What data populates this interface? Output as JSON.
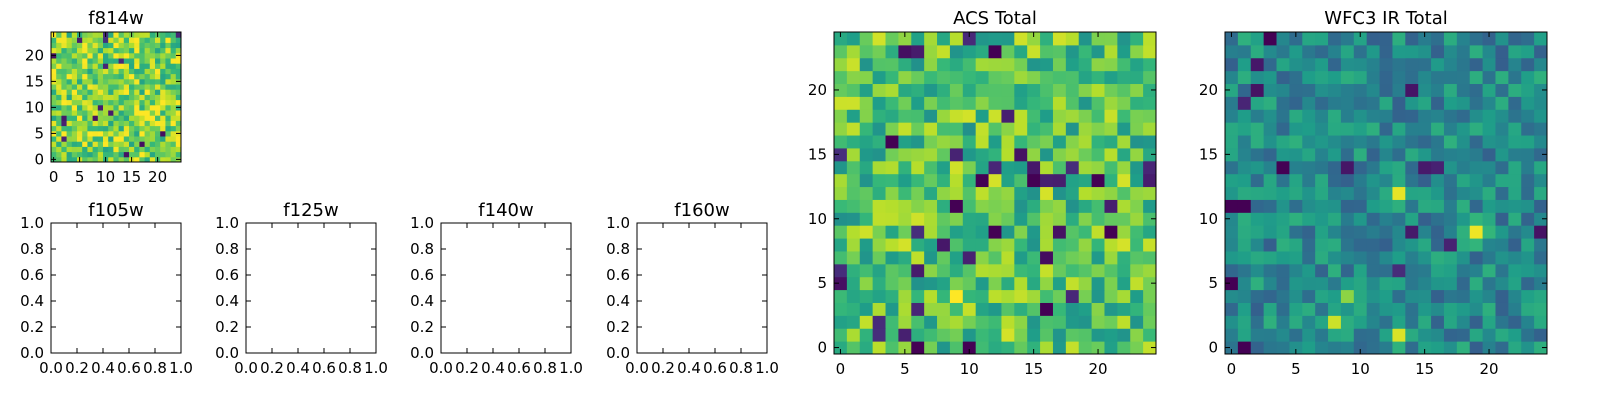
{
  "chart_data": [
    {
      "type": "heatmap",
      "title": "f814w",
      "xticks": [
        "0",
        "5",
        "10",
        "15",
        "20"
      ],
      "yticks": [
        "0",
        "5",
        "10",
        "15",
        "20"
      ],
      "xlim": [
        -0.5,
        24.5
      ],
      "ylim": [
        -0.5,
        24.5
      ],
      "grid_size": 25,
      "colormap": "viridis",
      "colorbar": false,
      "hotspots": [
        {
          "x": 9,
          "y": 5,
          "level": 1.0
        }
      ],
      "texture": "fine noisy high-level background, brightest blob near x=9, y=5"
    },
    {
      "type": "scatter",
      "title": "f105w",
      "xticks": [
        "0.0",
        "0.2",
        "0.4",
        "0.6",
        "0.8",
        "1.0"
      ],
      "yticks": [
        "0.0",
        "0.2",
        "0.4",
        "0.6",
        "0.8",
        "1.0"
      ],
      "xlim": [
        0,
        1
      ],
      "ylim": [
        0,
        1
      ],
      "empty": true
    },
    {
      "type": "scatter",
      "title": "f125w",
      "xticks": [
        "0.0",
        "0.2",
        "0.4",
        "0.6",
        "0.8",
        "1.0"
      ],
      "yticks": [
        "0.0",
        "0.2",
        "0.4",
        "0.6",
        "0.8",
        "1.0"
      ],
      "xlim": [
        0,
        1
      ],
      "ylim": [
        0,
        1
      ],
      "empty": true
    },
    {
      "type": "scatter",
      "title": "f140w",
      "xticks": [
        "0.0",
        "0.2",
        "0.4",
        "0.6",
        "0.8",
        "1.0"
      ],
      "yticks": [
        "0.0",
        "0.2",
        "0.4",
        "0.6",
        "0.8",
        "1.0"
      ],
      "xlim": [
        0,
        1
      ],
      "ylim": [
        0,
        1
      ],
      "empty": true
    },
    {
      "type": "scatter",
      "title": "f160w",
      "xticks": [
        "0.0",
        "0.2",
        "0.4",
        "0.6",
        "0.8",
        "1.0"
      ],
      "yticks": [
        "0.0",
        "0.2",
        "0.4",
        "0.6",
        "0.8",
        "1.0"
      ],
      "xlim": [
        0,
        1
      ],
      "ylim": [
        0,
        1
      ],
      "empty": true
    },
    {
      "type": "heatmap",
      "title": "ACS Total",
      "xticks": [
        "0",
        "5",
        "10",
        "15",
        "20"
      ],
      "yticks": [
        "0",
        "5",
        "10",
        "15",
        "20"
      ],
      "xlim": [
        -0.5,
        24.5
      ],
      "ylim": [
        -0.5,
        24.5
      ],
      "grid_size": 25,
      "colormap": "viridis",
      "colorbar": false,
      "hotspots": [
        {
          "x": 9,
          "y": 4,
          "level": 1.0
        },
        {
          "x": 1,
          "y": 1,
          "level": 0.9
        }
      ],
      "dark_pixels": [
        [
          12,
          23
        ],
        [
          4,
          16
        ],
        [
          11,
          13
        ],
        [
          15,
          13
        ],
        [
          20,
          13
        ],
        [
          9,
          11
        ],
        [
          12,
          9
        ],
        [
          21,
          9
        ],
        [
          16,
          3
        ],
        [
          6,
          0
        ],
        [
          10,
          0
        ]
      ],
      "texture": "noisy mid-to-high background, bright blob around x=8-10, y=3-5"
    },
    {
      "type": "heatmap",
      "title": "WFC3 IR Total",
      "xticks": [
        "0",
        "5",
        "10",
        "15",
        "20"
      ],
      "yticks": [
        "0",
        "5",
        "10",
        "15",
        "20"
      ],
      "xlim": [
        -0.5,
        24.5
      ],
      "ylim": [
        -0.5,
        24.5
      ],
      "grid_size": 25,
      "colormap": "viridis",
      "colorbar": false,
      "hotspots": [
        {
          "x": 19,
          "y": 9,
          "level": 1.0
        },
        {
          "x": 13,
          "y": 12,
          "level": 0.95
        },
        {
          "x": 8,
          "y": 2,
          "level": 0.95
        },
        {
          "x": 13,
          "y": 1,
          "level": 0.95
        },
        {
          "x": 9,
          "y": 4,
          "level": 0.85
        }
      ],
      "dark_pixels": [
        [
          3,
          24
        ],
        [
          4,
          14
        ],
        [
          0,
          11
        ],
        [
          1,
          11
        ],
        [
          0,
          5
        ],
        [
          1,
          0
        ]
      ],
      "texture": "noisy low-to-mid background with several bright isolated pixels"
    }
  ]
}
